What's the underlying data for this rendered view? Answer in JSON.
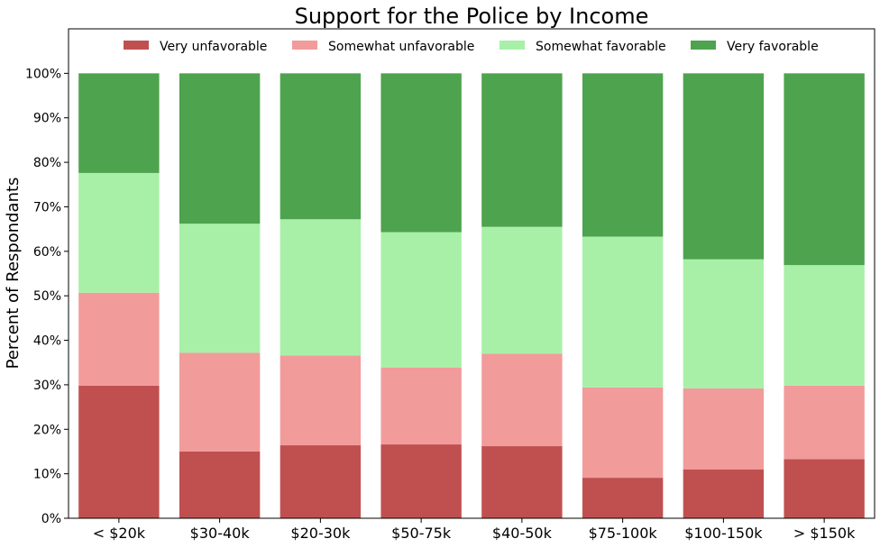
{
  "chart_data": {
    "type": "bar",
    "stacked": true,
    "title": "Support for the Police by Income",
    "xlabel": "",
    "ylabel": "Percent of Respondants",
    "ylim": [
      0,
      110
    ],
    "yticks": [
      "0%",
      "10%",
      "20%",
      "30%",
      "40%",
      "50%",
      "60%",
      "70%",
      "80%",
      "90%",
      "100%"
    ],
    "grid": false,
    "legend_position": "top-center",
    "categories": [
      "< $20k",
      "$30-40k",
      "$20-30k",
      "$50-75k",
      "$40-50k",
      "$75-100k",
      "$100-150k",
      "> $150k"
    ],
    "series": [
      {
        "name": "Very unfavorable",
        "color": "#c05050",
        "values": [
          29.8,
          15.0,
          16.4,
          16.6,
          16.2,
          9.1,
          11.0,
          13.3
        ]
      },
      {
        "name": "Somewhat unfavorable",
        "color": "#f29b9b",
        "values": [
          20.9,
          22.2,
          20.2,
          17.3,
          20.8,
          20.3,
          18.2,
          16.5
        ]
      },
      {
        "name": "Somewhat favorable",
        "color": "#a8f0a8",
        "values": [
          26.9,
          29.0,
          30.6,
          30.4,
          28.5,
          33.9,
          29.0,
          27.1
        ]
      },
      {
        "name": "Very favorable",
        "color": "#4ea34e",
        "values": [
          22.4,
          33.8,
          32.8,
          35.7,
          34.5,
          36.7,
          41.8,
          43.1
        ]
      }
    ]
  }
}
